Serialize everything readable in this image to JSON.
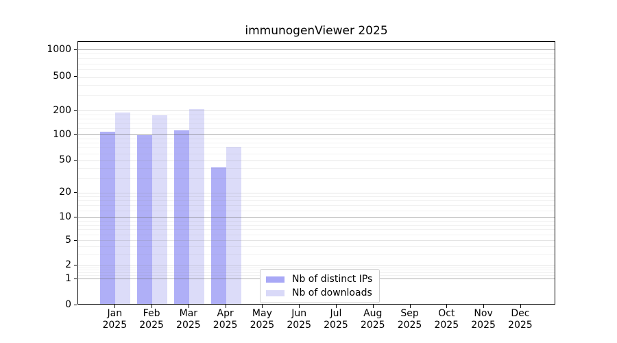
{
  "chart_data": {
    "type": "bar",
    "title": "immunogenViewer 2025",
    "year": "2025",
    "months": [
      "Jan",
      "Feb",
      "Mar",
      "Apr",
      "May",
      "Jun",
      "Jul",
      "Aug",
      "Sep",
      "Oct",
      "Nov",
      "Dec"
    ],
    "categories": [
      "Jan 2025",
      "Feb 2025",
      "Mar 2025",
      "Apr 2025",
      "May 2025",
      "Jun 2025",
      "Jul 2025",
      "Aug 2025",
      "Sep 2025",
      "Oct 2025",
      "Nov 2025",
      "Dec 2025"
    ],
    "series": [
      {
        "name": "Nb of distinct IPs",
        "color": "#a8a8f6",
        "values": [
          105,
          95,
          110,
          40,
          0,
          0,
          0,
          0,
          0,
          0,
          0,
          0
        ]
      },
      {
        "name": "Nb of downloads",
        "color": "#d9d9f8",
        "values": [
          185,
          170,
          205,
          70,
          0,
          0,
          0,
          0,
          0,
          0,
          0,
          0
        ]
      }
    ],
    "xlabel": "",
    "ylabel": "",
    "yscale": "symlog",
    "yticks": [
      0,
      1,
      2,
      5,
      10,
      20,
      50,
      100,
      200,
      500,
      1000
    ],
    "ylim": [
      0,
      1250
    ],
    "grid": "on",
    "legend_position": "bottom-center"
  }
}
